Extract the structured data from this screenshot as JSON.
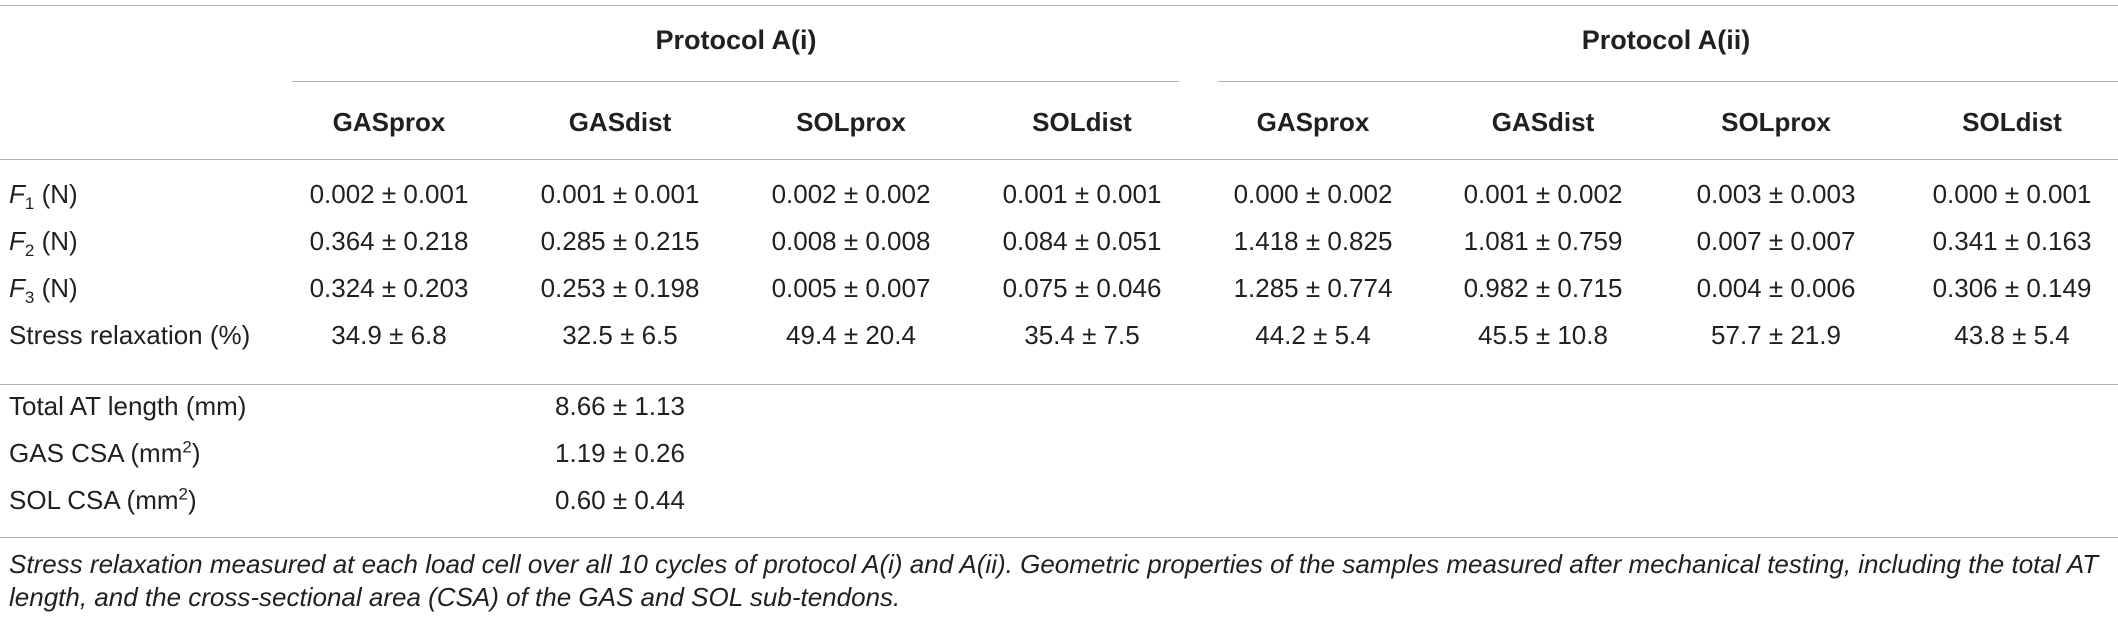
{
  "groups": [
    "Protocol A(i)",
    "Protocol A(ii)"
  ],
  "columns": [
    "GASprox",
    "GASdist",
    "SOLprox",
    "SOLdist",
    "GASprox",
    "GASdist",
    "SOLprox",
    "SOLdist"
  ],
  "rows": [
    {
      "label_var": "F",
      "label_sub": "1",
      "label_rest": " (N)",
      "values": [
        "0.002 ± 0.001",
        "0.001 ± 0.001",
        "0.002 ± 0.002",
        "0.001 ± 0.001",
        "0.000 ± 0.002",
        "0.001 ± 0.002",
        "0.003 ± 0.003",
        "0.000 ± 0.001"
      ]
    },
    {
      "label_var": "F",
      "label_sub": "2",
      "label_rest": " (N)",
      "values": [
        "0.364 ± 0.218",
        "0.285 ± 0.215",
        "0.008 ± 0.008",
        "0.084 ± 0.051",
        "1.418 ± 0.825",
        "1.081 ± 0.759",
        "0.007 ± 0.007",
        "0.341 ± 0.163"
      ]
    },
    {
      "label_var": "F",
      "label_sub": "3",
      "label_rest": " (N)",
      "values": [
        "0.324 ± 0.203",
        "0.253 ± 0.198",
        "0.005 ± 0.007",
        "0.075 ± 0.046",
        "1.285 ± 0.774",
        "0.982 ± 0.715",
        "0.004 ± 0.006",
        "0.306 ± 0.149"
      ]
    },
    {
      "label": "Stress relaxation (%)",
      "values": [
        "34.9 ± 6.8",
        "32.5 ± 6.5",
        "49.4 ± 20.4",
        "35.4 ± 7.5",
        "44.2 ± 5.4",
        "45.5 ± 10.8",
        "57.7 ± 21.9",
        "43.8 ± 5.4"
      ]
    }
  ],
  "geometry_rows": [
    {
      "label": "Total AT length (mm)",
      "value": "8.66 ± 1.13"
    },
    {
      "label": "GAS CSA (mm",
      "sup": "2",
      "label_end": ")",
      "value": "1.19 ± 0.26"
    },
    {
      "label": "SOL CSA (mm",
      "sup": "2",
      "label_end": ")",
      "value": "0.60 ± 0.44"
    }
  ],
  "caption": "Stress relaxation measured at each load cell over all 10 cycles of protocol A(i) and A(ii). Geometric properties of the samples measured after mechanical testing, including the total AT length, and the cross-sectional area (CSA) of the GAS and SOL sub-tendons."
}
